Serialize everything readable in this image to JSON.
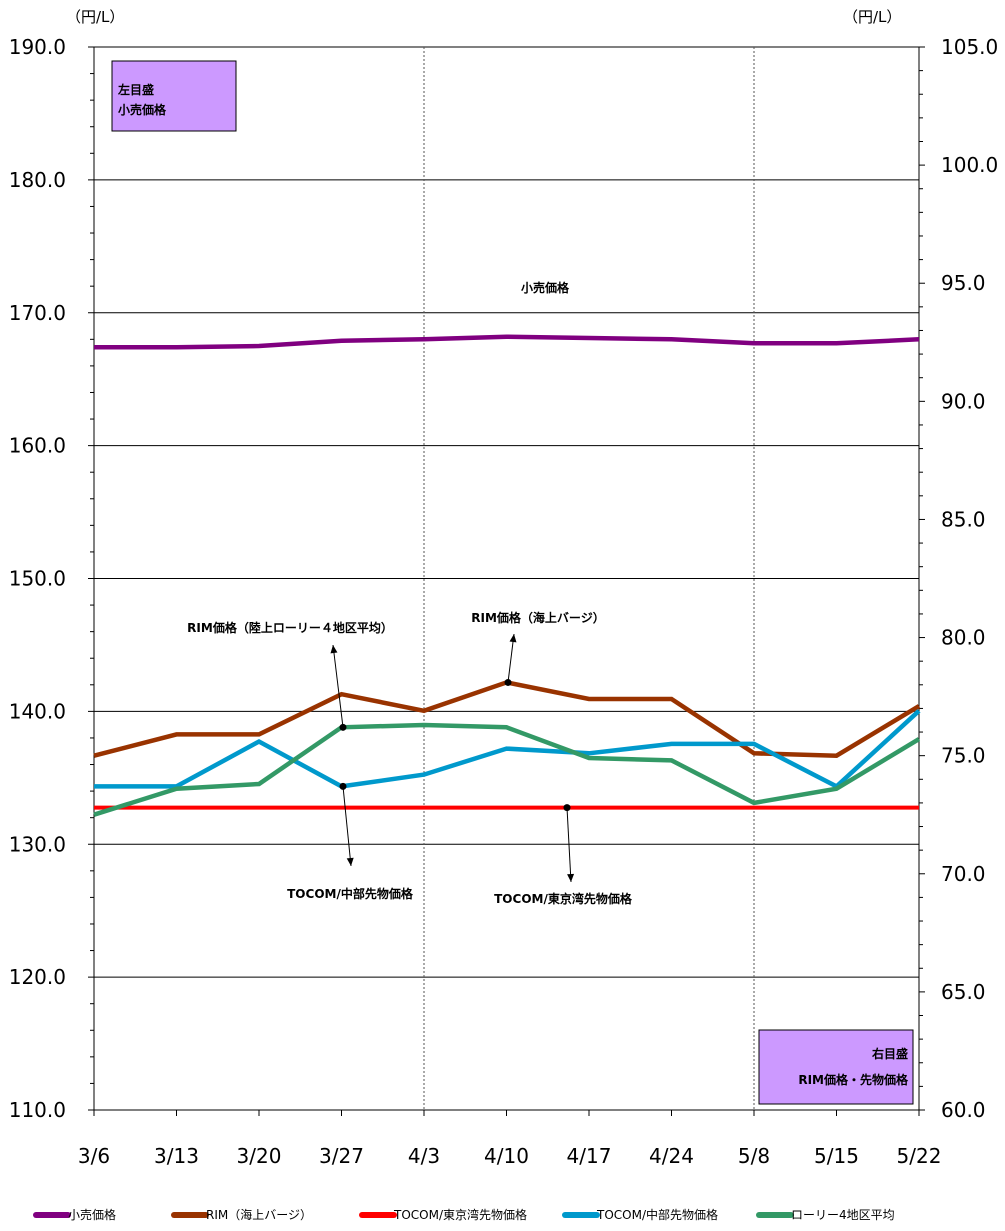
{
  "chart_data": {
    "type": "line",
    "left_unit": "（円/L）",
    "right_unit": "（円/L）",
    "left_axis_box": [
      "左目盛",
      "小売価格"
    ],
    "right_axis_box": [
      "右目盛",
      "RIM価格・先物価格"
    ],
    "categories": [
      "3/6",
      "3/13",
      "3/20",
      "3/27",
      "4/3",
      "4/10",
      "4/17",
      "4/24",
      "5/8",
      "5/15",
      "5/22"
    ],
    "y_left": {
      "ylim": [
        110,
        190
      ],
      "ticks": [
        "110.0",
        "120.0",
        "130.0",
        "140.0",
        "150.0",
        "160.0",
        "170.0",
        "180.0",
        "190.0"
      ]
    },
    "y_right": {
      "ylim": [
        60,
        105
      ],
      "ticks": [
        "60.0",
        "65.0",
        "70.0",
        "75.0",
        "80.0",
        "85.0",
        "90.0",
        "95.0",
        "100.0",
        "105.0"
      ]
    },
    "grid": "horizontal major lines; vertical dotted lines at 4/3 and 5/8",
    "series": [
      {
        "name": "小売価格",
        "axis": "left",
        "color": "#800080",
        "values": [
          167.4,
          167.4,
          167.5,
          167.9,
          168.0,
          168.2,
          168.1,
          168.0,
          167.7,
          167.7,
          168.0
        ]
      },
      {
        "name": "RIM（海上バージ）",
        "axis": "right",
        "color": "#993300",
        "values": [
          75.0,
          75.9,
          75.9,
          77.6,
          76.9,
          78.1,
          77.4,
          77.4,
          75.1,
          75.0,
          77.1
        ]
      },
      {
        "name": "TOCOM/東京湾先物価格",
        "axis": "right",
        "color": "#ff0000",
        "values": [
          72.8,
          72.8,
          72.8,
          72.8,
          72.8,
          72.8,
          72.8,
          72.8,
          72.8,
          72.8,
          72.8
        ]
      },
      {
        "name": "TOCOM/中部先物価格",
        "axis": "right",
        "color": "#0099cc",
        "values": [
          73.7,
          73.7,
          75.6,
          73.7,
          74.2,
          75.3,
          75.1,
          75.5,
          75.5,
          73.7,
          76.9
        ]
      },
      {
        "name": "ローリー4地区平均",
        "axis": "right",
        "color": "#339966",
        "values": [
          72.5,
          73.6,
          73.8,
          76.2,
          76.3,
          76.2,
          74.9,
          74.8,
          73.0,
          73.6,
          75.7
        ]
      }
    ],
    "annotations": [
      {
        "text": "小売価格"
      },
      {
        "text": "RIM価格（陸上ローリー４地区平均）"
      },
      {
        "text": "RIM価格（海上バージ）"
      },
      {
        "text": "TOCOM/中部先物価格"
      },
      {
        "text": "TOCOM/東京湾先物価格"
      }
    ],
    "legend_position": "bottom"
  }
}
